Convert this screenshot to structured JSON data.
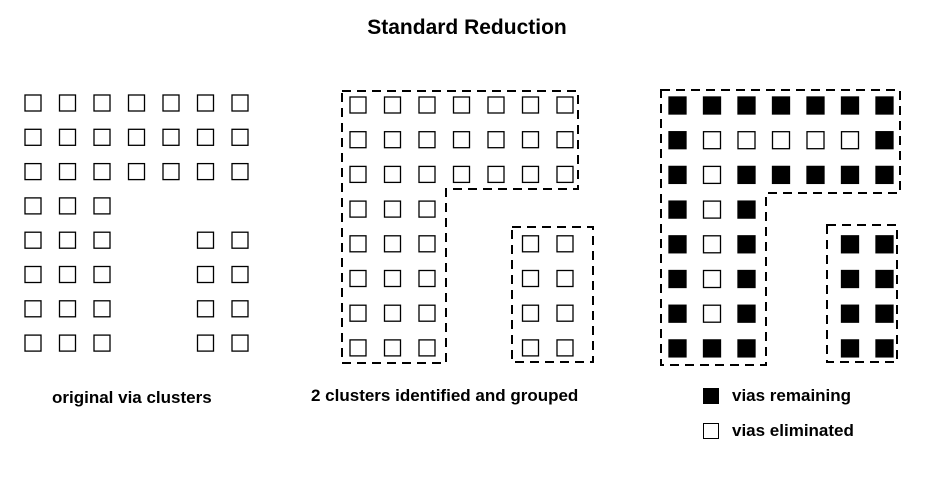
{
  "title": "Standard Reduction",
  "captions": {
    "original": "original via clusters",
    "grouped": "2 clusters identified and grouped"
  },
  "legend": {
    "remaining": "vias remaining",
    "eliminated": "vias eliminated"
  },
  "colors": {
    "via_filled": "#000000",
    "via_empty": "#ffffff",
    "stroke": "#000000"
  },
  "grid": {
    "rows": 8,
    "cols": 7,
    "vias": [
      [
        1,
        1,
        1,
        1,
        1,
        1,
        1
      ],
      [
        1,
        1,
        1,
        1,
        1,
        1,
        1
      ],
      [
        1,
        1,
        1,
        1,
        1,
        1,
        1
      ],
      [
        1,
        1,
        1,
        0,
        0,
        0,
        0
      ],
      [
        1,
        1,
        1,
        0,
        0,
        1,
        1
      ],
      [
        1,
        1,
        1,
        0,
        0,
        1,
        1
      ],
      [
        1,
        1,
        1,
        0,
        0,
        1,
        1
      ],
      [
        1,
        1,
        1,
        0,
        0,
        1,
        1
      ]
    ]
  },
  "panels": [
    {
      "name": "original-via-clusters",
      "clusters": false,
      "reduction": false
    },
    {
      "name": "clusters-grouped",
      "clusters": true,
      "reduction": false
    },
    {
      "name": "vias-after-reduction",
      "clusters": true,
      "reduction": true
    }
  ],
  "clusters": [
    {
      "name": "l-shaped-cluster",
      "shape": "L"
    },
    {
      "name": "rect-cluster",
      "shape": "rect"
    }
  ],
  "reduction_state": [
    [
      1,
      1,
      1,
      1,
      1,
      1,
      1
    ],
    [
      1,
      0,
      0,
      0,
      0,
      0,
      1
    ],
    [
      1,
      0,
      1,
      1,
      1,
      1,
      1
    ],
    [
      1,
      0,
      1,
      0,
      0,
      0,
      0
    ],
    [
      1,
      0,
      1,
      0,
      0,
      1,
      1
    ],
    [
      1,
      0,
      1,
      0,
      0,
      1,
      1
    ],
    [
      1,
      0,
      1,
      0,
      0,
      1,
      1
    ],
    [
      1,
      1,
      1,
      0,
      0,
      1,
      1
    ]
  ]
}
